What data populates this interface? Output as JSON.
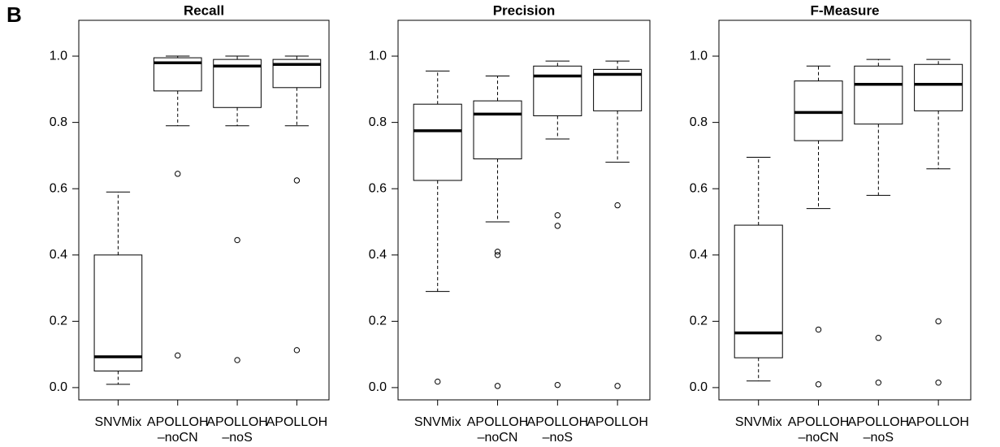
{
  "panel_label": "B",
  "chart_data": [
    {
      "type": "box",
      "title": "Recall",
      "categories": [
        "SNVMix",
        "APOLLOH\n–noCN",
        "APOLLOH\n–noS",
        "APOLLOH"
      ],
      "boxes": [
        {
          "low": 0.01,
          "q1": 0.05,
          "median": 0.093,
          "q3": 0.4,
          "high": 0.59,
          "outliers": []
        },
        {
          "low": 0.79,
          "q1": 0.895,
          "median": 0.98,
          "q3": 0.995,
          "high": 1.0,
          "outliers": [
            0.645,
            0.097
          ]
        },
        {
          "low": 0.79,
          "q1": 0.845,
          "median": 0.97,
          "q3": 0.99,
          "high": 1.0,
          "outliers": [
            0.445,
            0.083
          ]
        },
        {
          "low": 0.79,
          "q1": 0.905,
          "median": 0.975,
          "q3": 0.99,
          "high": 1.0,
          "outliers": [
            0.625,
            0.113
          ]
        }
      ],
      "ylim": [
        -0.037,
        1.108
      ],
      "yticks": [
        {
          "value": 0,
          "label": "0.0"
        },
        {
          "value": 0.2,
          "label": "0.2"
        },
        {
          "value": 0.4,
          "label": "0.4"
        },
        {
          "value": 0.6,
          "label": "0.6"
        },
        {
          "value": 0.8,
          "label": "0.8"
        },
        {
          "value": 1,
          "label": "1.0"
        }
      ]
    },
    {
      "type": "box",
      "title": "Precision",
      "categories": [
        "SNVMix",
        "APOLLOH\n–noCN",
        "APOLLOH\n–noS",
        "APOLLOH"
      ],
      "boxes": [
        {
          "low": 0.29,
          "q1": 0.625,
          "median": 0.775,
          "q3": 0.855,
          "high": 0.955,
          "outliers": [
            0.018
          ]
        },
        {
          "low": 0.5,
          "q1": 0.69,
          "median": 0.825,
          "q3": 0.865,
          "high": 0.94,
          "outliers": [
            0.41,
            0.4,
            0.005
          ]
        },
        {
          "low": 0.75,
          "q1": 0.82,
          "median": 0.94,
          "q3": 0.97,
          "high": 0.985,
          "outliers": [
            0.52,
            0.488,
            0.008
          ]
        },
        {
          "low": 0.68,
          "q1": 0.835,
          "median": 0.945,
          "q3": 0.96,
          "high": 0.985,
          "outliers": [
            0.55,
            0.005
          ]
        }
      ],
      "ylim": [
        -0.037,
        1.108
      ],
      "yticks": [
        {
          "value": 0,
          "label": "0.0"
        },
        {
          "value": 0.2,
          "label": "0.2"
        },
        {
          "value": 0.4,
          "label": "0.4"
        },
        {
          "value": 0.6,
          "label": "0.6"
        },
        {
          "value": 0.8,
          "label": "0.8"
        },
        {
          "value": 1,
          "label": "1.0"
        }
      ]
    },
    {
      "type": "box",
      "title": "F-Measure",
      "categories": [
        "SNVMix",
        "APOLLOH\n–noCN",
        "APOLLOH\n–noS",
        "APOLLOH"
      ],
      "boxes": [
        {
          "low": 0.02,
          "q1": 0.09,
          "median": 0.165,
          "q3": 0.49,
          "high": 0.695,
          "outliers": []
        },
        {
          "low": 0.54,
          "q1": 0.745,
          "median": 0.83,
          "q3": 0.925,
          "high": 0.97,
          "outliers": [
            0.175,
            0.01
          ]
        },
        {
          "low": 0.58,
          "q1": 0.795,
          "median": 0.915,
          "q3": 0.97,
          "high": 0.99,
          "outliers": [
            0.15,
            0.015
          ]
        },
        {
          "low": 0.66,
          "q1": 0.835,
          "median": 0.915,
          "q3": 0.975,
          "high": 0.99,
          "outliers": [
            0.2,
            0.015
          ]
        }
      ],
      "ylim": [
        -0.037,
        1.108
      ],
      "yticks": [
        {
          "value": 0,
          "label": "0.0"
        },
        {
          "value": 0.2,
          "label": "0.2"
        },
        {
          "value": 0.4,
          "label": "0.4"
        },
        {
          "value": 0.6,
          "label": "0.6"
        },
        {
          "value": 0.8,
          "label": "0.8"
        },
        {
          "value": 1,
          "label": "1.0"
        }
      ]
    }
  ]
}
